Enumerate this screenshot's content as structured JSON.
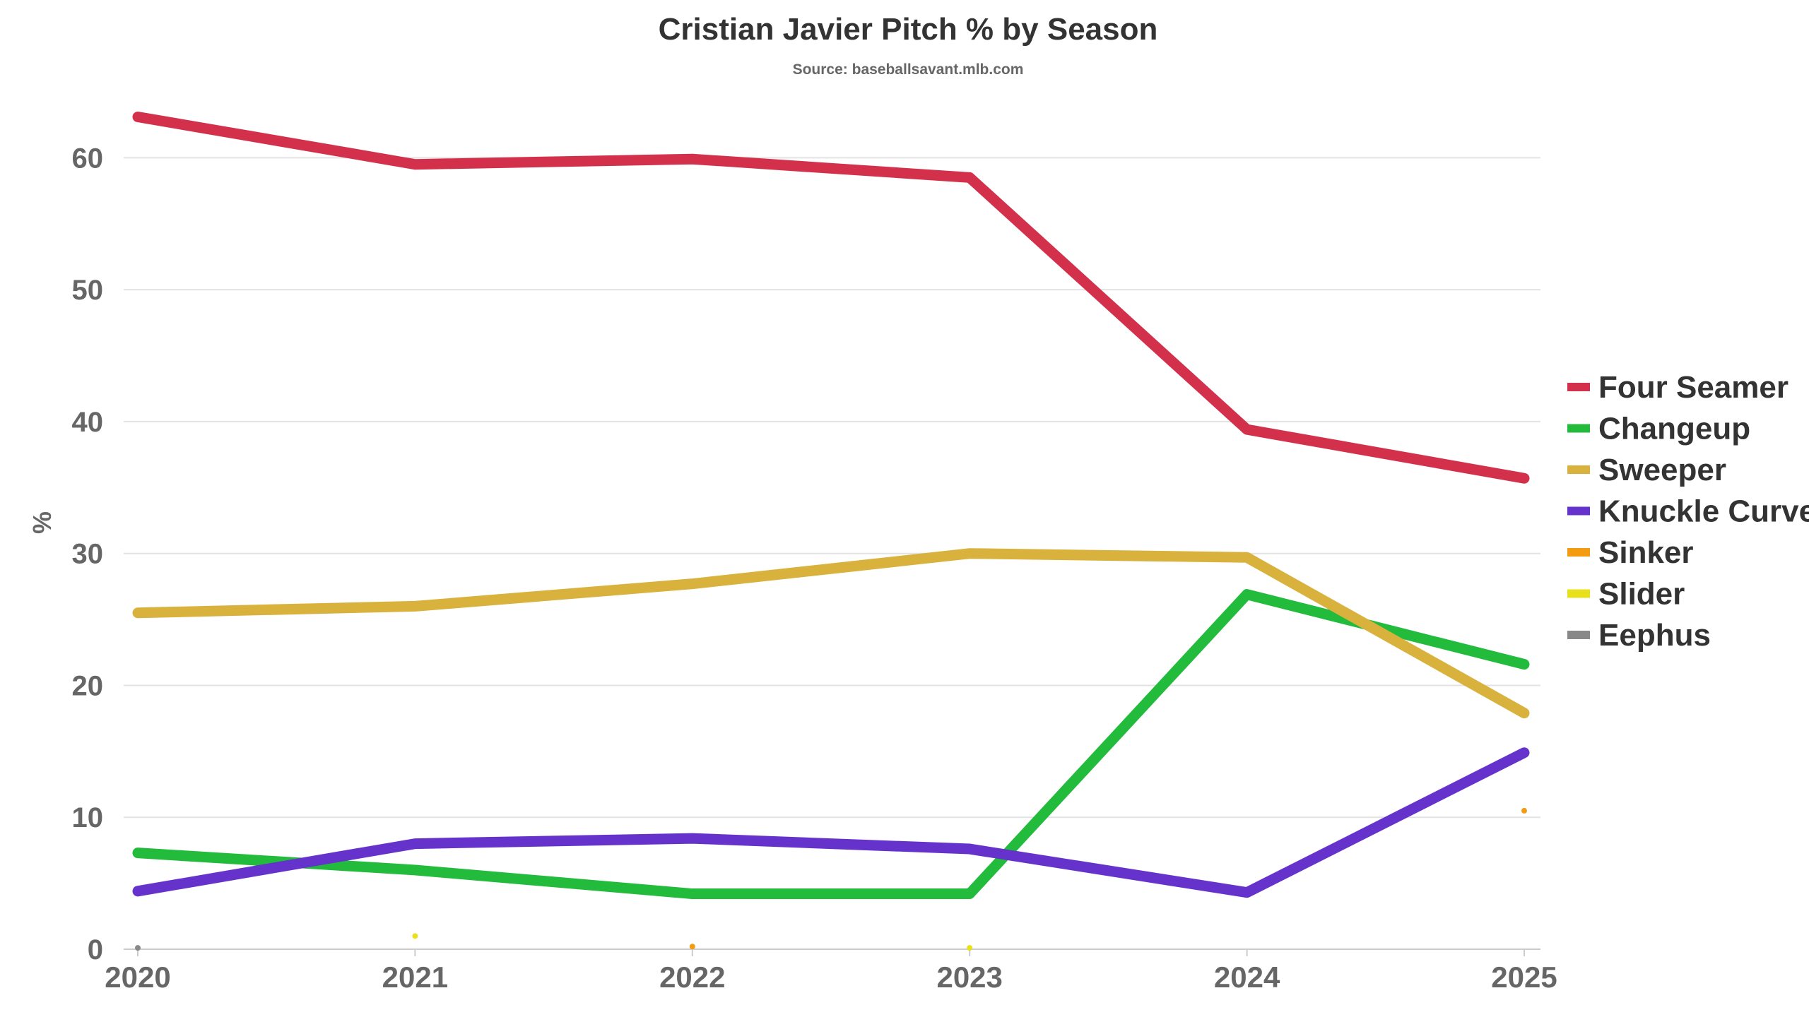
{
  "chart_data": {
    "type": "line",
    "title": "Cristian Javier Pitch % by Season",
    "subtitle": "Source: baseballsavant.mlb.com",
    "xlabel": "",
    "ylabel": "%",
    "x": [
      "2020",
      "2021",
      "2022",
      "2023",
      "2024",
      "2025"
    ],
    "ylim": [
      0,
      65
    ],
    "yticks": [
      "0",
      "10",
      "20",
      "30",
      "40",
      "50",
      "60"
    ],
    "grid": true,
    "legend_position": "right",
    "series": [
      {
        "name": "Four Seamer",
        "color": "#d3304b",
        "values": [
          63.1,
          59.5,
          59.9,
          58.5,
          39.4,
          35.7
        ]
      },
      {
        "name": "Changeup",
        "color": "#22bb3c",
        "values": [
          7.3,
          6.0,
          4.2,
          4.2,
          26.9,
          21.6
        ]
      },
      {
        "name": "Sweeper",
        "color": "#d8b23c",
        "values": [
          25.5,
          26.0,
          27.7,
          30.0,
          29.7,
          17.9
        ]
      },
      {
        "name": "Knuckle Curve",
        "color": "#6533cc",
        "values": [
          4.4,
          8.0,
          8.4,
          7.6,
          4.3,
          14.9
        ]
      },
      {
        "name": "Sinker",
        "color": "#f39c12",
        "values": [
          null,
          null,
          0.2,
          null,
          null,
          10.5
        ]
      },
      {
        "name": "Slider",
        "color": "#e8e01a",
        "values": [
          null,
          1.0,
          null,
          0.1,
          null,
          null
        ]
      },
      {
        "name": "Eephus",
        "color": "#888888",
        "values": [
          0.1,
          null,
          null,
          null,
          null,
          null
        ]
      }
    ]
  }
}
